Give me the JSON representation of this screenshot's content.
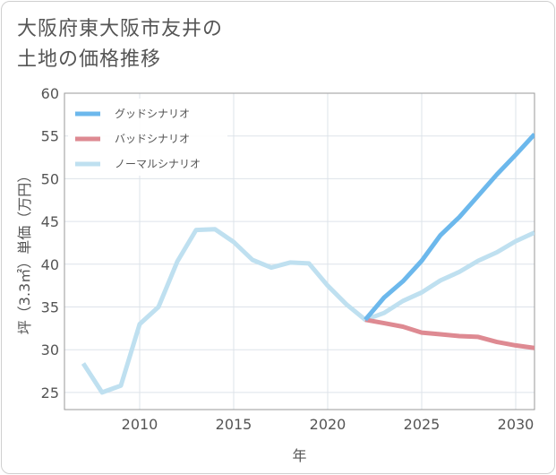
{
  "title_lines": [
    "大阪府東大阪市友井の",
    "土地の価格推移"
  ],
  "chart_data": {
    "type": "line",
    "title": "大阪府東大阪市友井の土地の価格推移",
    "xlabel": "年",
    "ylabel": "坪（3.3㎡）単価（万円）",
    "xlim": [
      2006,
      2031
    ],
    "ylim": [
      23,
      60
    ],
    "xticks": [
      2010,
      2015,
      2020,
      2025,
      2030
    ],
    "yticks": [
      25,
      30,
      35,
      40,
      45,
      50,
      55,
      60
    ],
    "legend_position": "top-left",
    "series": [
      {
        "name": "グッドシナリオ",
        "color": "#6cb8ec",
        "x": [
          2022,
          2023,
          2024,
          2025,
          2026,
          2027,
          2028,
          2029,
          2030,
          2031
        ],
        "y": [
          33.5,
          36.1,
          38.0,
          40.4,
          43.4,
          45.5,
          48.0,
          50.5,
          52.8,
          55.2
        ]
      },
      {
        "name": "バッドシナリオ",
        "color": "#de8a92",
        "x": [
          2022,
          2023,
          2024,
          2025,
          2026,
          2027,
          2028,
          2029,
          2030,
          2031
        ],
        "y": [
          33.5,
          33.1,
          32.7,
          32.0,
          31.8,
          31.6,
          31.5,
          30.9,
          30.5,
          30.2
        ]
      },
      {
        "name": "ノーマルシナリオ",
        "color": "#bfe0f0",
        "x": [
          2007,
          2008,
          2009,
          2010,
          2011,
          2012,
          2013,
          2014,
          2015,
          2016,
          2017,
          2018,
          2019,
          2020,
          2021,
          2022,
          2023,
          2024,
          2025,
          2026,
          2027,
          2028,
          2029,
          2030,
          2031
        ],
        "y": [
          28.4,
          25.0,
          25.8,
          33.0,
          35.0,
          40.3,
          44.0,
          44.1,
          42.6,
          40.5,
          39.6,
          40.2,
          40.1,
          37.5,
          35.3,
          33.5,
          34.3,
          35.7,
          36.7,
          38.1,
          39.1,
          40.4,
          41.4,
          42.7,
          43.7
        ]
      }
    ]
  }
}
